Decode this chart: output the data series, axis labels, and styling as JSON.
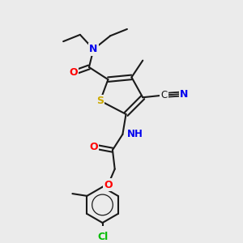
{
  "background_color": "#ebebeb",
  "bond_color": "#1a1a1a",
  "atom_colors": {
    "N": "#0000ee",
    "O": "#ff0000",
    "S": "#ccaa00",
    "Cl": "#00bb00",
    "C": "#1a1a1a"
  },
  "bond_width": 1.5,
  "font_size_atom": 8.5,
  "figsize": [
    3.0,
    3.0
  ],
  "dpi": 100
}
